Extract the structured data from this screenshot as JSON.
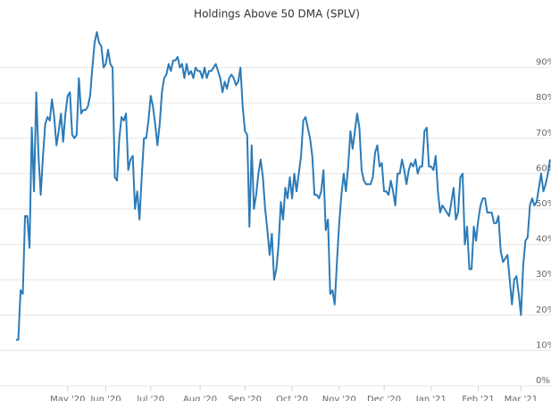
{
  "chart_data": {
    "type": "line",
    "title": "Holdings Above 50 DMA (SPLV)",
    "series": [
      {
        "name": "SPLV",
        "color": "#2b7bb9",
        "values": [
          13,
          13,
          27,
          26,
          48,
          48,
          39,
          73,
          55,
          83,
          65,
          54,
          65,
          74,
          76,
          75,
          81,
          76,
          68,
          72,
          77,
          69,
          77,
          82,
          83,
          71,
          70,
          71,
          87,
          77,
          78,
          78,
          79,
          82,
          90,
          97,
          100,
          97,
          96,
          90,
          91,
          95,
          91,
          90,
          59,
          58,
          70,
          76,
          75,
          77,
          61,
          64,
          65,
          50,
          55,
          47,
          59,
          70,
          70,
          75,
          82,
          79,
          74,
          68,
          74,
          83,
          87,
          88,
          91,
          89,
          92,
          92,
          93,
          90,
          91,
          87,
          91,
          88,
          89,
          87,
          90,
          89,
          89,
          87,
          90,
          87,
          89,
          89,
          90,
          91,
          89,
          87,
          83,
          86,
          84,
          87,
          88,
          87,
          85,
          86,
          90,
          79,
          72,
          71,
          45,
          68,
          50,
          54,
          60,
          64,
          59,
          50,
          44,
          37,
          43,
          30,
          33,
          40,
          52,
          47,
          56,
          53,
          59,
          53,
          60,
          55,
          60,
          65,
          75,
          76,
          73,
          70,
          65,
          54,
          54,
          53,
          55,
          61,
          44,
          47,
          26,
          27,
          23,
          35,
          46,
          54,
          60,
          55,
          62,
          72,
          67,
          72,
          77,
          73,
          61,
          58,
          57,
          57,
          57,
          59,
          66,
          68,
          62,
          63,
          55,
          55,
          54,
          58,
          55,
          51,
          60,
          60,
          64,
          61,
          57,
          61,
          63,
          62,
          64,
          60,
          62,
          62,
          72,
          73,
          62,
          62,
          61,
          65,
          55,
          49,
          51,
          50,
          49,
          48,
          52,
          56,
          47,
          49,
          59,
          60,
          40,
          45,
          33,
          33,
          45,
          41,
          47,
          51,
          53,
          53,
          49,
          49,
          49,
          46,
          46,
          48,
          38,
          35,
          36,
          37,
          30,
          23,
          30,
          31,
          26,
          20,
          34,
          41,
          42,
          51,
          53,
          51,
          52,
          56,
          60,
          55,
          57,
          60,
          64
        ]
      }
    ],
    "xlim": [
      0,
      238
    ],
    "xticks": [
      {
        "value": 23,
        "label": "May '20"
      },
      {
        "value": 40,
        "label": "Jun '20"
      },
      {
        "value": 60,
        "label": "Jul '20"
      },
      {
        "value": 82,
        "label": "Aug '20"
      },
      {
        "value": 102,
        "label": "Sep '20"
      },
      {
        "value": 123,
        "label": "Oct '20"
      },
      {
        "value": 144,
        "label": "Nov '20"
      },
      {
        "value": 164,
        "label": "Dec '20"
      },
      {
        "value": 185,
        "label": "Jan '21"
      },
      {
        "value": 206,
        "label": "Feb '21"
      },
      {
        "value": 225,
        "label": "Mar '21"
      }
    ],
    "ylim": [
      0,
      100
    ],
    "yticks": [
      {
        "value": 0,
        "label": "0%"
      },
      {
        "value": 10,
        "label": "10%"
      },
      {
        "value": 20,
        "label": "20%"
      },
      {
        "value": 30,
        "label": "30%"
      },
      {
        "value": 40,
        "label": "40%"
      },
      {
        "value": 50,
        "label": "50%"
      },
      {
        "value": 60,
        "label": "60%"
      },
      {
        "value": 70,
        "label": "70%"
      },
      {
        "value": 80,
        "label": "80%"
      },
      {
        "value": 90,
        "label": "90%"
      }
    ],
    "grid": true
  }
}
